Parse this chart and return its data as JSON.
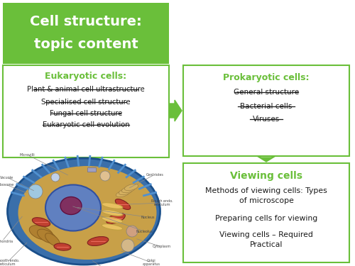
{
  "title_line1": "Cell structure:",
  "title_line2": "topic content",
  "title_bg": "#6abf3a",
  "title_text_color": "#ffffff",
  "box_border_color": "#6abf3a",
  "arrow_color": "#6abf3a",
  "green_text_color": "#6abf3a",
  "black_text_color": "#1a1a1a",
  "bg_color": "#ffffff",
  "euk_title": "Eukaryotic cells:",
  "euk_items": [
    "Plant & animal cell ultrastructure",
    "Specialised cell structure",
    "Fungal cell structure",
    "Eukaryotic cell evolution"
  ],
  "prok_title": "Prokaryotic cells:",
  "prok_items": [
    "General structure",
    "Bacterial cells",
    "Viruses"
  ],
  "view_title": "Viewing cells",
  "view_items": [
    "Methods of viewing cells: Types\nof microscope",
    "Preparing cells for viewing",
    "Viewing cells – Required\nPractical"
  ]
}
